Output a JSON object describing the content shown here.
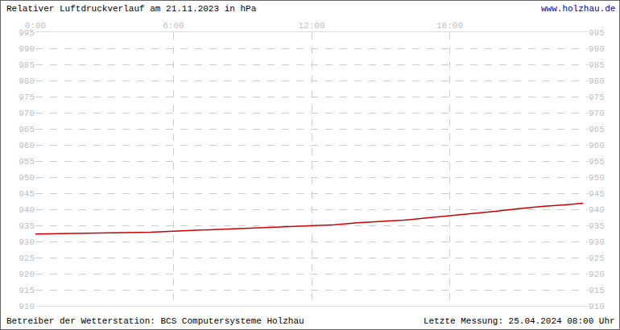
{
  "chart_data": {
    "type": "line",
    "title": "Relativer Luftdruckverlauf am 21.11.2023 in hPa",
    "annotations": [
      "www.holzhau.de",
      "Betreiber der Wetterstation: BCS Computersysteme Holzhau",
      "Letzte Messung: 25.04.2024 08:00 Uhr"
    ],
    "x": [
      0,
      1,
      2,
      3,
      4,
      5,
      6,
      7,
      8,
      9,
      10,
      11,
      12,
      13,
      14,
      15,
      16,
      17,
      18,
      19,
      20,
      21,
      22,
      23,
      23.8
    ],
    "values": [
      932.3,
      932.4,
      932.5,
      932.6,
      932.7,
      932.9,
      933.2,
      933.5,
      933.8,
      934.1,
      934.4,
      934.7,
      934.9,
      935.2,
      935.8,
      936.2,
      936.6,
      937.3,
      938.0,
      938.6,
      939.4,
      940.2,
      940.9,
      941.4,
      941.9
    ],
    "color": "#cc0000",
    "xlim": [
      0,
      24
    ],
    "xticks": [
      {
        "value": 0,
        "label": "0:00"
      },
      {
        "value": 6,
        "label": "6:00"
      },
      {
        "value": 12,
        "label": "12:00"
      },
      {
        "value": 18,
        "label": "18:00"
      }
    ],
    "ylim": [
      910,
      995
    ],
    "yticks": [
      910,
      915,
      920,
      925,
      930,
      935,
      940,
      945,
      950,
      955,
      960,
      965,
      970,
      975,
      980,
      985,
      990,
      995
    ],
    "grid": true
  }
}
